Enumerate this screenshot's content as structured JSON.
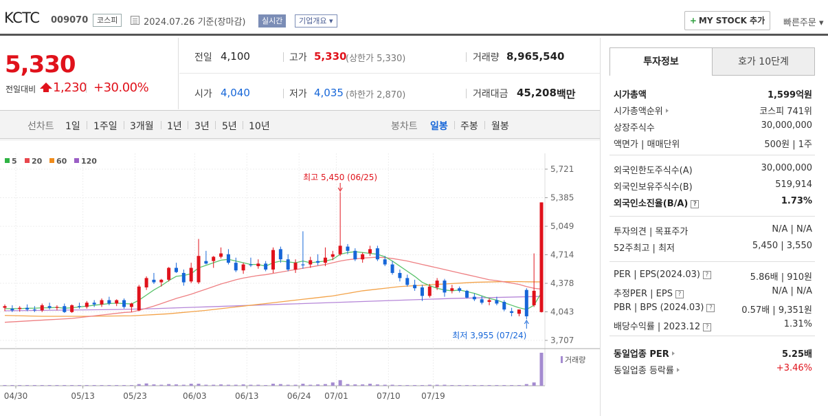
{
  "header": {
    "name": "KCTC",
    "code": "009070",
    "market": "코스피",
    "date": "2024.07.26 기준(장마감)",
    "realtime_label": "실시간",
    "company_label": "기업개요",
    "mystock_label": "MY STOCK 추가",
    "quick_order_label": "빠른주문"
  },
  "price": {
    "current": "5,330",
    "prev_label": "전일대비",
    "change": "1,230",
    "change_pct": "+30.00%"
  },
  "quote": {
    "prev_close": {
      "label": "전일",
      "value": "4,100"
    },
    "high": {
      "label": "고가",
      "value": "5,330",
      "sub": "(상한가 5,330)"
    },
    "volume": {
      "label": "거래량",
      "value": "8,965,540"
    },
    "open": {
      "label": "시가",
      "value": "4,040"
    },
    "low": {
      "label": "저가",
      "value": "4,035",
      "sub": "(하한가 2,870)"
    },
    "amount": {
      "label": "거래대금",
      "value": "45,208",
      "unit": "백만"
    }
  },
  "period_bar": {
    "line_label": "선차트",
    "line_items": [
      "1일",
      "1주일",
      "3개월",
      "1년",
      "3년",
      "5년",
      "10년"
    ],
    "candle_label": "봉차트",
    "candle_items": [
      "일봉",
      "주봉",
      "월봉"
    ],
    "candle_selected": "일봉"
  },
  "chart_data": {
    "type": "candlestick",
    "legend": [
      {
        "name": "5",
        "color": "#2fb344"
      },
      {
        "name": "20",
        "color": "#e8474d"
      },
      {
        "name": "60",
        "color": "#f08c1c"
      },
      {
        "name": "120",
        "color": "#9b5fc5"
      }
    ],
    "y_ticks": [
      "5,721",
      "5,385",
      "5,049",
      "4,714",
      "4,378",
      "4,043",
      "3,707"
    ],
    "ylim": [
      3707,
      5721
    ],
    "x_ticks": [
      "04/30",
      "05/13",
      "05/23",
      "06/03",
      "06/13",
      "06/24",
      "07/01",
      "07/10",
      "07/19"
    ],
    "max_annotation": "최고 5,450 (06/25)",
    "min_annotation": "최저 3,955 (07/24)",
    "volume_label": "거래량",
    "candles": [
      {
        "o": 4090,
        "h": 4130,
        "l": 4050,
        "c": 4110
      },
      {
        "o": 4080,
        "h": 4120,
        "l": 4040,
        "c": 4060
      },
      {
        "o": 4075,
        "h": 4110,
        "l": 4045,
        "c": 4090
      },
      {
        "o": 4090,
        "h": 4130,
        "l": 4050,
        "c": 4070
      },
      {
        "o": 4070,
        "h": 4110,
        "l": 4040,
        "c": 4060
      },
      {
        "o": 4060,
        "h": 4140,
        "l": 4040,
        "c": 4120
      },
      {
        "o": 4110,
        "h": 4150,
        "l": 4070,
        "c": 4090
      },
      {
        "o": 4090,
        "h": 4120,
        "l": 4060,
        "c": 4100
      },
      {
        "o": 4110,
        "h": 4140,
        "l": 4030,
        "c": 4040
      },
      {
        "o": 4040,
        "h": 4130,
        "l": 4030,
        "c": 4120
      },
      {
        "o": 4110,
        "h": 4150,
        "l": 4080,
        "c": 4100
      },
      {
        "o": 4100,
        "h": 4170,
        "l": 4080,
        "c": 4150
      },
      {
        "o": 4150,
        "h": 4180,
        "l": 4100,
        "c": 4130
      },
      {
        "o": 4130,
        "h": 4200,
        "l": 4100,
        "c": 4180
      },
      {
        "o": 4180,
        "h": 4220,
        "l": 4120,
        "c": 4140
      },
      {
        "o": 4140,
        "h": 4190,
        "l": 4110,
        "c": 4180
      },
      {
        "o": 4180,
        "h": 4200,
        "l": 4080,
        "c": 4100
      },
      {
        "o": 4100,
        "h": 4150,
        "l": 4040,
        "c": 4140
      },
      {
        "o": 4060,
        "h": 4360,
        "l": 4050,
        "c": 4340
      },
      {
        "o": 4330,
        "h": 4460,
        "l": 4300,
        "c": 4440
      },
      {
        "o": 4420,
        "h": 4500,
        "l": 4370,
        "c": 4390
      },
      {
        "o": 4390,
        "h": 4430,
        "l": 4340,
        "c": 4420
      },
      {
        "o": 4420,
        "h": 4570,
        "l": 4400,
        "c": 4560
      },
      {
        "o": 4560,
        "h": 4620,
        "l": 4500,
        "c": 4510
      },
      {
        "o": 4500,
        "h": 4540,
        "l": 4350,
        "c": 4390
      },
      {
        "o": 4400,
        "h": 4620,
        "l": 4380,
        "c": 4560
      },
      {
        "o": 4390,
        "h": 4900,
        "l": 4370,
        "c": 4700
      },
      {
        "o": 4640,
        "h": 4760,
        "l": 4600,
        "c": 4610
      },
      {
        "o": 4640,
        "h": 4700,
        "l": 4560,
        "c": 4690
      },
      {
        "o": 4690,
        "h": 4800,
        "l": 4670,
        "c": 4730
      },
      {
        "o": 4720,
        "h": 4780,
        "l": 4600,
        "c": 4620
      },
      {
        "o": 4620,
        "h": 4680,
        "l": 4510,
        "c": 4530
      },
      {
        "o": 4530,
        "h": 4620,
        "l": 4490,
        "c": 4600
      },
      {
        "o": 4600,
        "h": 4680,
        "l": 4570,
        "c": 4590
      },
      {
        "o": 4580,
        "h": 4660,
        "l": 4550,
        "c": 4610
      },
      {
        "o": 4610,
        "h": 4640,
        "l": 4520,
        "c": 4540
      },
      {
        "o": 4540,
        "h": 4800,
        "l": 4500,
        "c": 4770
      },
      {
        "o": 4780,
        "h": 4810,
        "l": 4620,
        "c": 4660
      },
      {
        "o": 4660,
        "h": 4720,
        "l": 4520,
        "c": 4540
      },
      {
        "o": 4540,
        "h": 4660,
        "l": 4500,
        "c": 4620
      },
      {
        "o": 4600,
        "h": 4990,
        "l": 4550,
        "c": 4590
      },
      {
        "o": 4600,
        "h": 4690,
        "l": 4560,
        "c": 4650
      },
      {
        "o": 4640,
        "h": 4720,
        "l": 4590,
        "c": 4620
      },
      {
        "o": 4620,
        "h": 4800,
        "l": 4580,
        "c": 4680
      },
      {
        "o": 4690,
        "h": 4760,
        "l": 4650,
        "c": 4720
      },
      {
        "o": 4720,
        "h": 5450,
        "l": 4700,
        "c": 4820
      },
      {
        "o": 4810,
        "h": 4840,
        "l": 4720,
        "c": 4760
      },
      {
        "o": 4760,
        "h": 4790,
        "l": 4640,
        "c": 4660
      },
      {
        "o": 4660,
        "h": 4740,
        "l": 4620,
        "c": 4720
      },
      {
        "o": 4730,
        "h": 4820,
        "l": 4700,
        "c": 4780
      },
      {
        "o": 4790,
        "h": 4820,
        "l": 4640,
        "c": 4660
      },
      {
        "o": 4660,
        "h": 4700,
        "l": 4580,
        "c": 4600
      },
      {
        "o": 4600,
        "h": 4640,
        "l": 4480,
        "c": 4500
      },
      {
        "o": 4500,
        "h": 4540,
        "l": 4400,
        "c": 4440
      },
      {
        "o": 4440,
        "h": 4480,
        "l": 4340,
        "c": 4360
      },
      {
        "o": 4360,
        "h": 4420,
        "l": 4290,
        "c": 4320
      },
      {
        "o": 4330,
        "h": 4360,
        "l": 4170,
        "c": 4230
      },
      {
        "o": 4230,
        "h": 4370,
        "l": 4210,
        "c": 4340
      },
      {
        "o": 4330,
        "h": 4440,
        "l": 4300,
        "c": 4410
      },
      {
        "o": 4410,
        "h": 4430,
        "l": 4220,
        "c": 4270
      },
      {
        "o": 4290,
        "h": 4360,
        "l": 4260,
        "c": 4320
      },
      {
        "o": 4320,
        "h": 4340,
        "l": 4270,
        "c": 4290
      },
      {
        "o": 4290,
        "h": 4300,
        "l": 4200,
        "c": 4210
      },
      {
        "o": 4220,
        "h": 4260,
        "l": 4170,
        "c": 4190
      },
      {
        "o": 4190,
        "h": 4230,
        "l": 4130,
        "c": 4150
      },
      {
        "o": 4160,
        "h": 4200,
        "l": 4120,
        "c": 4180
      },
      {
        "o": 4180,
        "h": 4220,
        "l": 4120,
        "c": 4140
      },
      {
        "o": 4160,
        "h": 4180,
        "l": 4050,
        "c": 4070
      },
      {
        "o": 4050,
        "h": 4090,
        "l": 3990,
        "c": 4030
      },
      {
        "o": 4020,
        "h": 4070,
        "l": 3990,
        "c": 4070
      },
      {
        "o": 4300,
        "h": 4320,
        "l": 3955,
        "c": 3990
      },
      {
        "o": 4120,
        "h": 4730,
        "l": 4100,
        "c": 4290
      },
      {
        "o": 4040,
        "h": 5330,
        "l": 4035,
        "c": 5330
      }
    ],
    "ma5": [
      4080,
      4080,
      4080,
      4085,
      4085,
      4090,
      4090,
      4095,
      4085,
      4090,
      4100,
      4110,
      4120,
      4130,
      4140,
      4145,
      4140,
      4135,
      4180,
      4240,
      4300,
      4350,
      4410,
      4460,
      4470,
      4490,
      4560,
      4590,
      4620,
      4650,
      4660,
      4640,
      4620,
      4600,
      4600,
      4580,
      4620,
      4640,
      4630,
      4620,
      4640,
      4620,
      4630,
      4640,
      4660,
      4720,
      4740,
      4750,
      4740,
      4730,
      4720,
      4690,
      4640,
      4580,
      4520,
      4460,
      4390,
      4350,
      4320,
      4300,
      4290,
      4300,
      4280,
      4260,
      4230,
      4200,
      4180,
      4150,
      4120,
      4090,
      4070,
      4120,
      4270
    ],
    "ma20": [
      3920,
      3925,
      3930,
      3935,
      3940,
      3945,
      3950,
      3955,
      3960,
      3965,
      3975,
      3985,
      3995,
      4005,
      4015,
      4025,
      4035,
      4040,
      4060,
      4085,
      4110,
      4140,
      4170,
      4200,
      4225,
      4250,
      4280,
      4310,
      4340,
      4370,
      4395,
      4420,
      4440,
      4455,
      4470,
      4480,
      4495,
      4510,
      4525,
      4540,
      4555,
      4570,
      4585,
      4600,
      4620,
      4640,
      4655,
      4665,
      4675,
      4680,
      4685,
      4680,
      4670,
      4655,
      4640,
      4620,
      4600,
      4580,
      4560,
      4540,
      4520,
      4500,
      4480,
      4460,
      4440,
      4420,
      4410,
      4395,
      4380,
      4365,
      4340,
      4320,
      4310
    ],
    "ma60": [
      4000,
      3998,
      3996,
      3994,
      3992,
      3990,
      3990,
      3990,
      3990,
      3990,
      3990,
      3990,
      3991,
      3992,
      3993,
      3994,
      3995,
      3996,
      4000,
      4005,
      4010,
      4015,
      4020,
      4028,
      4036,
      4044,
      4052,
      4060,
      4070,
      4080,
      4090,
      4100,
      4110,
      4120,
      4130,
      4140,
      4150,
      4160,
      4170,
      4180,
      4190,
      4200,
      4210,
      4220,
      4230,
      4245,
      4260,
      4275,
      4290,
      4300,
      4310,
      4320,
      4330,
      4340,
      4345,
      4350,
      4355,
      4360,
      4365,
      4370,
      4375,
      4380,
      4385,
      4390,
      4392,
      4394,
      4396,
      4398,
      4398,
      4398,
      4396,
      4395,
      4395
    ],
    "ma120": [
      4055,
      4056,
      4057,
      4058,
      4059,
      4060,
      4061,
      4062,
      4063,
      4064,
      4065,
      4066,
      4067,
      4068,
      4069,
      4070,
      4072,
      4074,
      4076,
      4078,
      4080,
      4083,
      4086,
      4089,
      4092,
      4095,
      4098,
      4101,
      4104,
      4107,
      4110,
      4113,
      4116,
      4119,
      4122,
      4125,
      4128,
      4131,
      4134,
      4137,
      4140,
      4143,
      4146,
      4149,
      4152,
      4155,
      4158,
      4161,
      4164,
      4167,
      4170,
      4173,
      4176,
      4179,
      4182,
      4185,
      4188,
      4191,
      4194,
      4197,
      4200,
      4202,
      4204,
      4206,
      4208,
      4210,
      4212,
      4214,
      4216,
      4218,
      4220,
      4222,
      4224
    ],
    "volume": [
      0.02,
      0.01,
      0.02,
      0.01,
      0.01,
      0.02,
      0.01,
      0.01,
      0.02,
      0.02,
      0.01,
      0.02,
      0.01,
      0.02,
      0.01,
      0.01,
      0.02,
      0.01,
      0.05,
      0.07,
      0.04,
      0.03,
      0.05,
      0.04,
      0.03,
      0.06,
      0.06,
      0.03,
      0.03,
      0.04,
      0.03,
      0.03,
      0.04,
      0.03,
      0.03,
      0.02,
      0.06,
      0.05,
      0.03,
      0.03,
      0.06,
      0.03,
      0.04,
      0.05,
      0.1,
      0.17,
      0.05,
      0.04,
      0.04,
      0.06,
      0.04,
      0.03,
      0.03,
      0.02,
      0.02,
      0.02,
      0.02,
      0.03,
      0.03,
      0.03,
      0.02,
      0.02,
      0.02,
      0.02,
      0.02,
      0.02,
      0.01,
      0.02,
      0.02,
      0.02,
      0.05,
      0.1,
      1.0
    ]
  },
  "side": {
    "tab_active": "투자정보",
    "tab_inactive": "호가 10단계",
    "rows1": [
      {
        "label": "시가총액",
        "value": "1,599억원",
        "bold": true
      },
      {
        "label": "시가총액순위",
        "value": "코스피 741위",
        "caret": true
      },
      {
        "label": "상장주식수",
        "value": "30,000,000"
      },
      {
        "label": "액면가 | 매매단위",
        "value": "500원 | 1주"
      }
    ],
    "rows2": [
      {
        "label": "외국인한도주식수(A)",
        "value": "30,000,000"
      },
      {
        "label": "외국인보유주식수(B)",
        "value": "519,914"
      },
      {
        "label": "외국인소진율(B/A)",
        "value": "1.73%",
        "bold": true,
        "q": true
      }
    ],
    "rows3": [
      {
        "label": "투자의견 | 목표주가",
        "value": "N/A | N/A"
      },
      {
        "label": "52주최고 | 최저",
        "value": "5,450 | 3,550"
      }
    ],
    "rows4": [
      {
        "label": "PER | EPS(2024.03)",
        "value": "5.86배 | 910원",
        "q": true
      },
      {
        "label": "추정PER | EPS",
        "value": "N/A | N/A",
        "q": true
      },
      {
        "label": "PBR | BPS (2024.03)",
        "value": "0.57배 | 9,351원",
        "q": true
      },
      {
        "label": "배당수익률 | 2023.12",
        "value": "1.31%",
        "q": true
      }
    ],
    "rows5": [
      {
        "label": "동일업종 PER",
        "value": "5.25배",
        "bold": true,
        "caret": true
      },
      {
        "label": "동일업종 등락률",
        "value": "+3.46%",
        "red": true,
        "caret": true
      }
    ]
  }
}
